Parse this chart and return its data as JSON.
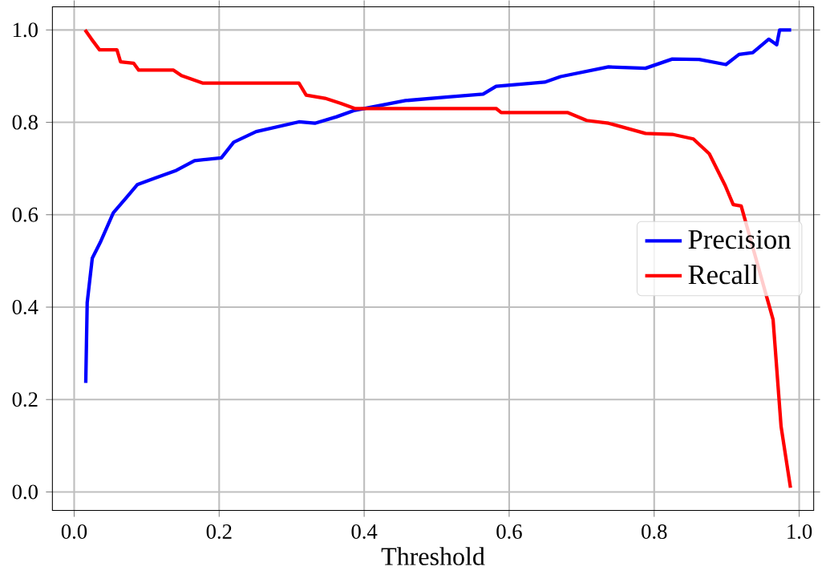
{
  "chart_data": {
    "type": "line",
    "xlabel": "Threshold",
    "xlim": [
      -0.03,
      1.02
    ],
    "ylim": [
      -0.04,
      1.05
    ],
    "xticks": [
      {
        "value": 0,
        "label": "0.0"
      },
      0.2,
      0.4,
      0.6,
      0.8,
      {
        "value": 1,
        "label": "1.0"
      }
    ],
    "yticks": [
      {
        "value": 0,
        "label": "0.0"
      },
      0.2,
      0.4,
      0.6,
      0.8,
      {
        "value": 1,
        "label": "1.0"
      }
    ],
    "grid": true,
    "legend": "right",
    "line_style": "solid",
    "marker": "none",
    "series": [
      {
        "name": "Precision",
        "color": "#0000ff",
        "x": [
          0.016,
          0.018,
          0.025,
          0.036,
          0.054,
          0.073,
          0.087,
          0.111,
          0.141,
          0.166,
          0.203,
          0.22,
          0.251,
          0.31,
          0.332,
          0.362,
          0.387,
          0.457,
          0.516,
          0.564,
          0.582,
          0.649,
          0.671,
          0.737,
          0.788,
          0.825,
          0.862,
          0.899,
          0.917,
          0.936,
          0.958,
          0.969,
          0.973,
          0.989
        ],
        "values": [
          0.236,
          0.41,
          0.506,
          0.54,
          0.604,
          0.639,
          0.665,
          0.679,
          0.696,
          0.717,
          0.723,
          0.757,
          0.78,
          0.801,
          0.798,
          0.812,
          0.826,
          0.847,
          0.855,
          0.861,
          0.878,
          0.887,
          0.899,
          0.92,
          0.917,
          0.937,
          0.936,
          0.925,
          0.947,
          0.951,
          0.98,
          0.968,
          1.0,
          1.0
        ]
      },
      {
        "name": "Recall",
        "color": "#ff0000",
        "x": [
          0.015,
          0.024,
          0.035,
          0.059,
          0.064,
          0.082,
          0.089,
          0.137,
          0.148,
          0.177,
          0.31,
          0.32,
          0.346,
          0.368,
          0.387,
          0.516,
          0.582,
          0.589,
          0.681,
          0.707,
          0.737,
          0.788,
          0.825,
          0.854,
          0.876,
          0.898,
          0.909,
          0.92,
          0.964,
          0.975,
          0.988
        ],
        "values": [
          1.0,
          0.98,
          0.957,
          0.957,
          0.931,
          0.928,
          0.913,
          0.913,
          0.901,
          0.885,
          0.885,
          0.859,
          0.852,
          0.841,
          0.83,
          0.83,
          0.83,
          0.821,
          0.821,
          0.804,
          0.798,
          0.776,
          0.774,
          0.764,
          0.732,
          0.663,
          0.622,
          0.619,
          0.373,
          0.142,
          0.009
        ]
      }
    ]
  }
}
